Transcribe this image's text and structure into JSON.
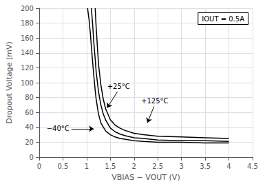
{
  "chart_data": {
    "type": "line",
    "xlabel": "VBIAS − VOUT (V)",
    "ylabel": "Dropout Voltage (mV)",
    "xlim": [
      0,
      4.5
    ],
    "ylim": [
      0,
      200
    ],
    "xticks": [
      0,
      0.5,
      1,
      1.5,
      2,
      2.5,
      3,
      3.5,
      4,
      4.5
    ],
    "yticks": [
      0,
      20,
      40,
      60,
      80,
      100,
      120,
      140,
      160,
      180,
      200
    ],
    "grid": true,
    "series": [
      {
        "color": "#000000",
        "x": [
          1.02,
          1.05,
          1.08,
          1.1,
          1.13,
          1.15,
          1.18,
          1.2,
          1.25,
          1.3,
          1.4,
          1.5,
          1.6,
          1.7,
          1.8,
          2.0,
          2.2,
          2.5,
          3.0,
          3.5,
          4.0
        ],
        "values": [
          200,
          185,
          165,
          148,
          125,
          110,
          90,
          78,
          58,
          46,
          35,
          30,
          27,
          25,
          24,
          22,
          21,
          20,
          20,
          19,
          19
        ]
      },
      {
        "color": "#000000",
        "x": [
          1.1,
          1.13,
          1.15,
          1.18,
          1.2,
          1.25,
          1.3,
          1.35,
          1.4,
          1.5,
          1.6,
          1.7,
          1.8,
          2.0,
          2.2,
          2.5,
          3.0,
          3.5,
          4.0
        ],
        "values": [
          200,
          175,
          155,
          132,
          115,
          88,
          70,
          58,
          50,
          39,
          34,
          31,
          29,
          26,
          25,
          23,
          22,
          22,
          21
        ]
      },
      {
        "color": "#000000",
        "x": [
          1.18,
          1.2,
          1.22,
          1.25,
          1.3,
          1.35,
          1.4,
          1.5,
          1.6,
          1.7,
          1.8,
          2.0,
          2.2,
          2.5,
          3.0,
          3.5,
          4.0
        ],
        "values": [
          200,
          175,
          155,
          125,
          97,
          78,
          65,
          50,
          43,
          39,
          36,
          32,
          30,
          28,
          27,
          26,
          25
        ]
      }
    ],
    "annotations": [
      {
        "text": "IOUT = 0.5A"
      },
      {
        "text": "−40°C",
        "x": 1.15,
        "y": 38,
        "text_x": 0.68,
        "text_y": 38
      },
      {
        "text": "+25°C",
        "x": 1.43,
        "y": 66,
        "text_x": 1.65,
        "text_y": 88
      },
      {
        "text": "+125°C",
        "x": 2.28,
        "y": 46,
        "text_x": 2.42,
        "text_y": 68
      }
    ]
  }
}
